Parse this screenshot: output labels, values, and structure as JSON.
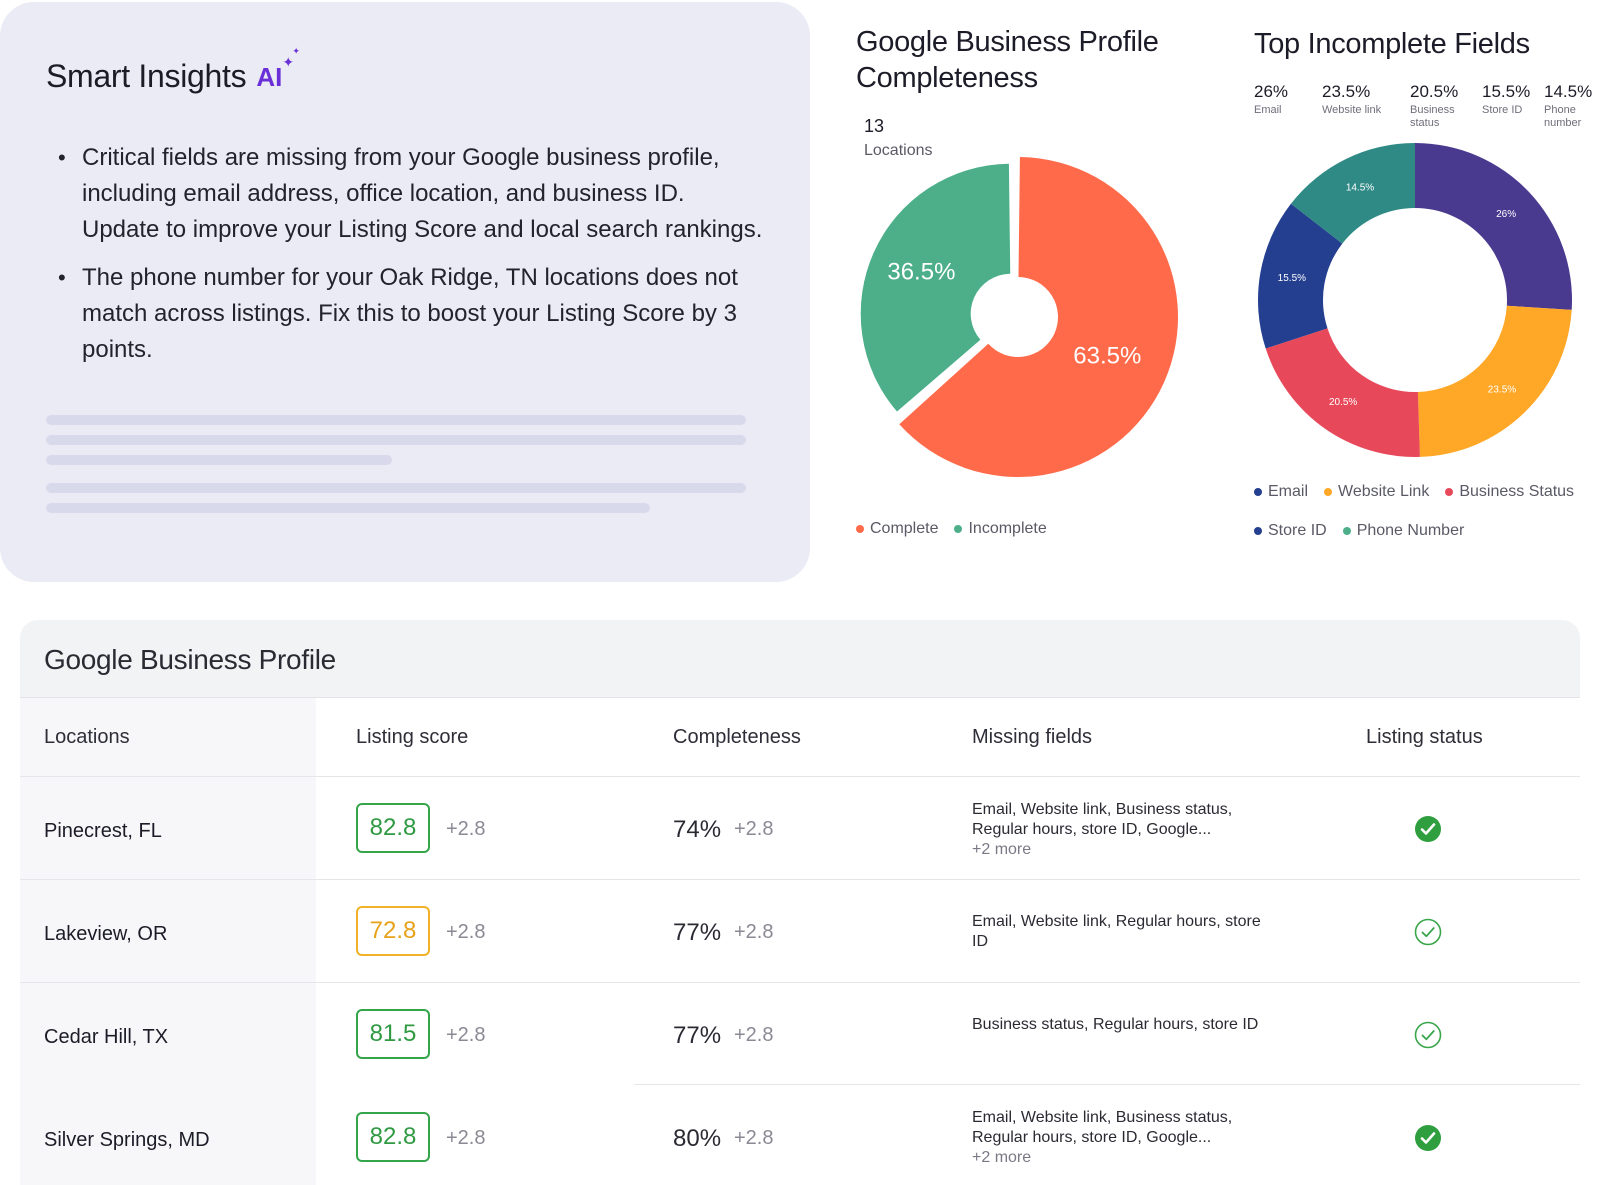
{
  "insights": {
    "title": "Smart Insights",
    "ai_label": "AI",
    "bullets": [
      "Critical fields are missing from your Google business profile, including email address, office location, and business ID. Update to improve your Listing Score and local search rankings.",
      "The phone number for your Oak Ridge, TN locations does not match across listings. Fix this to boost your Listing Score by 3 points."
    ]
  },
  "completeness_chart": {
    "title_line1": "Google Business Profile",
    "title_line2": "Completeness",
    "count": "13",
    "count_label": "Locations",
    "legend": [
      "Complete",
      "Incomplete"
    ]
  },
  "incomplete_chart": {
    "title": "Top Incomplete Fields",
    "stats": [
      {
        "pct": "26%",
        "label": "Email"
      },
      {
        "pct": "23.5%",
        "label": "Website link"
      },
      {
        "pct": "20.5%",
        "label": "Business status"
      },
      {
        "pct": "15.5%",
        "label": "Store ID"
      },
      {
        "pct": "14.5%",
        "label": "Phone number"
      }
    ],
    "legend": [
      "Email",
      "Website Link",
      "Business Status",
      "Store ID",
      "Phone Number"
    ]
  },
  "colors": {
    "complete": "#ff6b4a",
    "incomplete": "#4caf8a",
    "email": "#4a3a8f",
    "website": "#ffa726",
    "business_status": "#e8495a",
    "store_id": "#243f8f",
    "phone": "#2f8a85",
    "score_green": "#35a54a",
    "score_amber": "#f2b227"
  },
  "chart_data": [
    {
      "type": "pie",
      "categories": [
        "Complete",
        "Incomplete"
      ],
      "values": [
        63.5,
        36.5
      ],
      "labels": [
        "63.5%",
        "36.5%"
      ],
      "title": "Google Business Profile Completeness"
    },
    {
      "type": "pie",
      "categories": [
        "Email",
        "Website Link",
        "Business Status",
        "Store ID",
        "Phone Number"
      ],
      "values": [
        26,
        23.5,
        20.5,
        15.5,
        14.5
      ],
      "labels": [
        "26%",
        "23.5%",
        "20.5%",
        "15.5%",
        "14.5%"
      ],
      "title": "Top Incomplete Fields"
    }
  ],
  "table": {
    "title": "Google Business Profile",
    "headers": [
      "Locations",
      "Listing score",
      "Completeness",
      "Missing fields",
      "Listing status"
    ],
    "rows": [
      {
        "location": "Pinecrest, FL",
        "score": "82.8",
        "score_level": "green",
        "score_delta": "+2.8",
        "completeness": "74%",
        "comp_delta": "+2.8",
        "missing": "Email, Website link, Business status, Regular hours, store ID, Google...",
        "more": "+2 more",
        "status": "filled"
      },
      {
        "location": "Lakeview, OR",
        "score": "72.8",
        "score_level": "amber",
        "score_delta": "+2.8",
        "completeness": "77%",
        "comp_delta": "+2.8",
        "missing": "Email, Website link, Regular hours, store ID",
        "more": "",
        "status": "outline"
      },
      {
        "location": "Cedar Hill, TX",
        "score": "81.5",
        "score_level": "green",
        "score_delta": "+2.8",
        "completeness": "77%",
        "comp_delta": "+2.8",
        "missing": "Business status, Regular hours, store ID",
        "more": "",
        "status": "outline"
      },
      {
        "location": "Silver Springs, MD",
        "score": "82.8",
        "score_level": "green",
        "score_delta": "+2.8",
        "completeness": "80%",
        "comp_delta": "+2.8",
        "missing": "Email, Website link, Business status, Regular hours, store ID, Google...",
        "more": "+2 more",
        "status": "filled"
      }
    ]
  }
}
